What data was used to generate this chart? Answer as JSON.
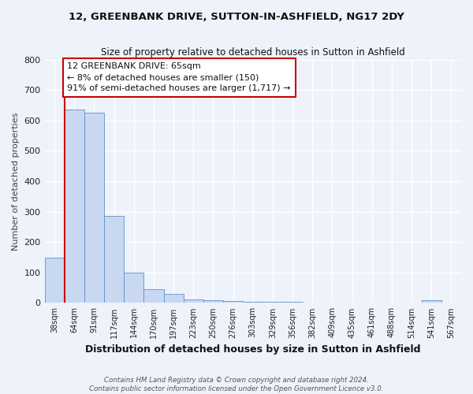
{
  "title": "12, GREENBANK DRIVE, SUTTON-IN-ASHFIELD, NG17 2DY",
  "subtitle": "Size of property relative to detached houses in Sutton in Ashfield",
  "xlabel": "Distribution of detached houses by size in Sutton in Ashfield",
  "ylabel": "Number of detached properties",
  "categories": [
    "38sqm",
    "64sqm",
    "91sqm",
    "117sqm",
    "144sqm",
    "170sqm",
    "197sqm",
    "223sqm",
    "250sqm",
    "276sqm",
    "303sqm",
    "329sqm",
    "356sqm",
    "382sqm",
    "409sqm",
    "435sqm",
    "461sqm",
    "488sqm",
    "514sqm",
    "541sqm",
    "567sqm"
  ],
  "values": [
    150,
    635,
    625,
    285,
    100,
    45,
    30,
    12,
    8,
    6,
    5,
    5,
    3,
    0,
    0,
    0,
    0,
    0,
    0,
    8,
    0
  ],
  "bar_color": "#c8d8f0",
  "bar_edge_color": "#6090c8",
  "annotation_box_text": "12 GREENBANK DRIVE: 65sqm\n← 8% of detached houses are smaller (150)\n91% of semi-detached houses are larger (1,717) →",
  "annotation_box_color": "#ffffff",
  "annotation_box_edge_color": "#cc0000",
  "vline_color": "#cc0000",
  "footer": "Contains HM Land Registry data © Crown copyright and database right 2024.\nContains public sector information licensed under the Open Government Licence v3.0.",
  "background_color": "#eef2fb",
  "ylim": [
    0,
    800
  ],
  "yticks": [
    0,
    100,
    200,
    300,
    400,
    500,
    600,
    700,
    800
  ]
}
